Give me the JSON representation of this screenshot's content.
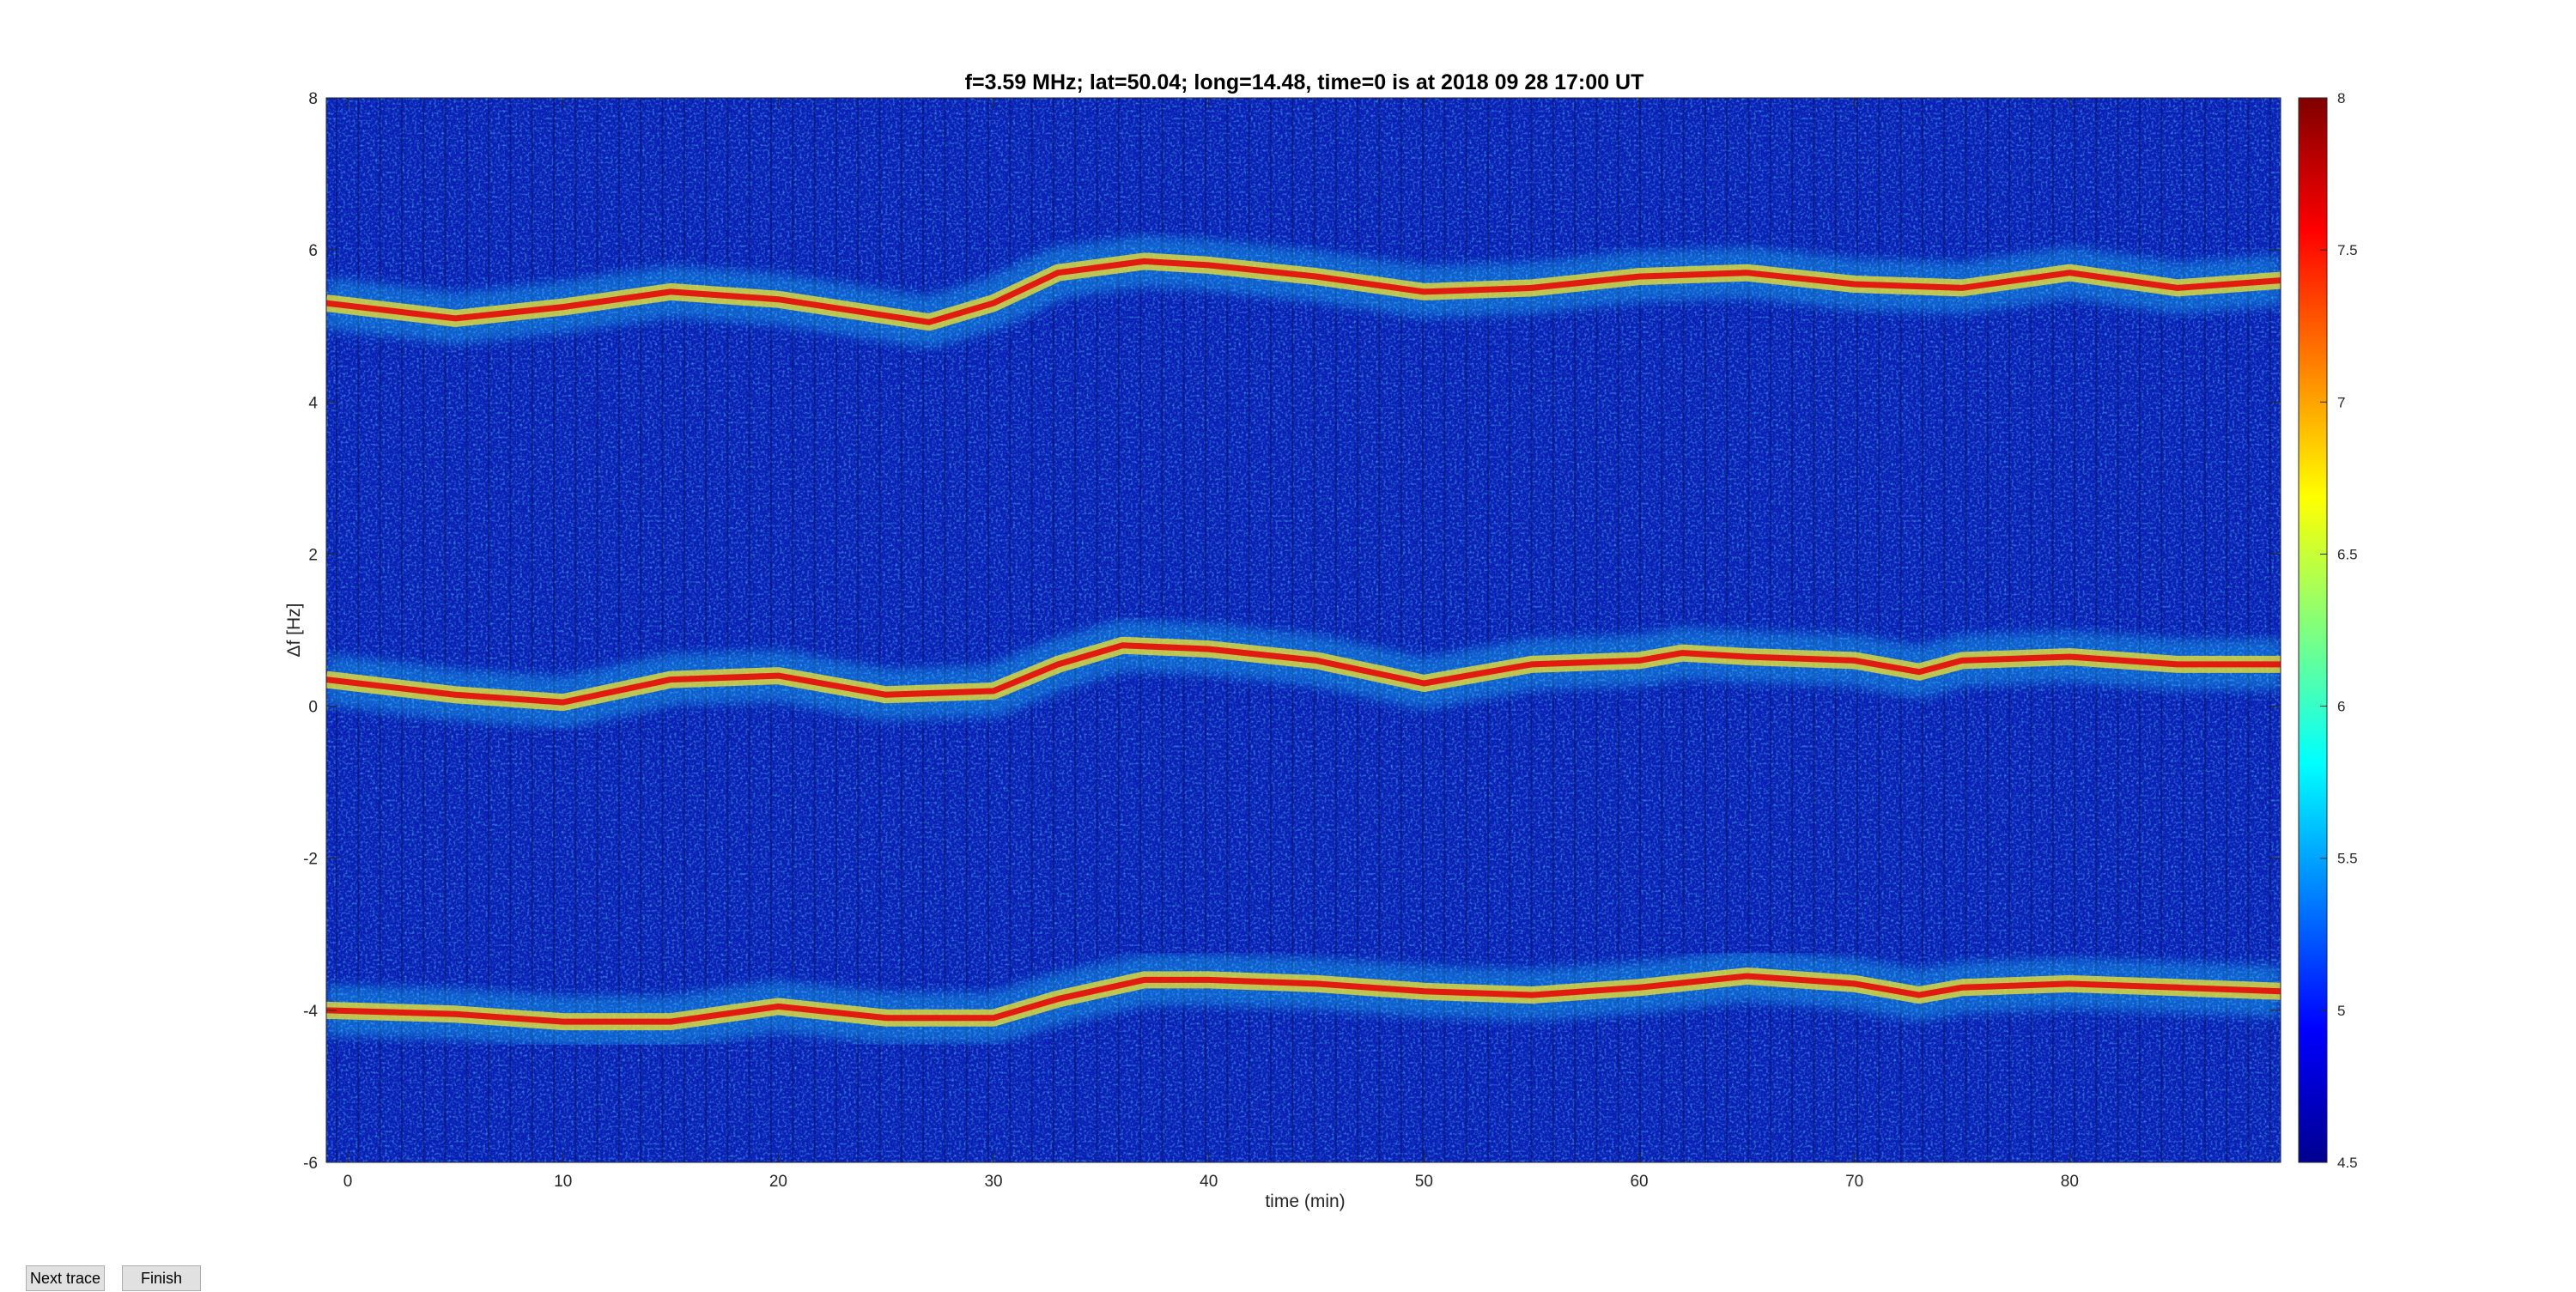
{
  "buttons": {
    "next_trace": "Next trace",
    "finish": "Finish"
  },
  "chart_data": {
    "type": "heatmap",
    "title": "f=3.59 MHz;  lat=50.04; long=14.48, time=0 is at 2018 09 28 17:00 UT",
    "xlabel": "time (min)",
    "ylabel": "Δf [Hz]",
    "xlim": [
      -1,
      89.8
    ],
    "ylim": [
      -6,
      8
    ],
    "xticks": [
      0,
      10,
      20,
      30,
      40,
      50,
      60,
      70,
      80
    ],
    "yticks": [
      -6,
      -4,
      -2,
      0,
      2,
      4,
      6,
      8
    ],
    "colormap": "jet",
    "clim": [
      4.5,
      8
    ],
    "colorbar_ticks": [
      4.5,
      5,
      5.5,
      6,
      6.5,
      7,
      7.5,
      8
    ],
    "background_color": "#0a1fb5",
    "traces": [
      {
        "x": [
          -1,
          5,
          10,
          15,
          20,
          27,
          30,
          33,
          37,
          40,
          45,
          50,
          55,
          60,
          65,
          70,
          75,
          80,
          85,
          89.8
        ],
        "y": [
          5.3,
          5.1,
          5.25,
          5.45,
          5.35,
          5.05,
          5.3,
          5.7,
          5.85,
          5.8,
          5.65,
          5.45,
          5.5,
          5.65,
          5.7,
          5.55,
          5.5,
          5.7,
          5.5,
          5.6
        ]
      },
      {
        "x": [
          -1,
          5,
          10,
          15,
          20,
          25,
          30,
          33,
          36,
          40,
          45,
          50,
          55,
          60,
          62,
          65,
          70,
          73,
          75,
          80,
          85,
          89.8
        ],
        "y": [
          0.35,
          0.15,
          0.05,
          0.35,
          0.4,
          0.15,
          0.2,
          0.55,
          0.8,
          0.75,
          0.6,
          0.3,
          0.55,
          0.6,
          0.7,
          0.65,
          0.6,
          0.45,
          0.6,
          0.65,
          0.55,
          0.55
        ]
      },
      {
        "x": [
          -1,
          5,
          10,
          15,
          20,
          25,
          30,
          33,
          37,
          40,
          45,
          50,
          55,
          60,
          65,
          70,
          73,
          75,
          80,
          85,
          89.8
        ],
        "y": [
          -4.0,
          -4.05,
          -4.15,
          -4.15,
          -3.95,
          -4.1,
          -4.1,
          -3.85,
          -3.6,
          -3.6,
          -3.65,
          -3.75,
          -3.8,
          -3.7,
          -3.55,
          -3.65,
          -3.8,
          -3.7,
          -3.65,
          -3.7,
          -3.75
        ]
      }
    ]
  }
}
